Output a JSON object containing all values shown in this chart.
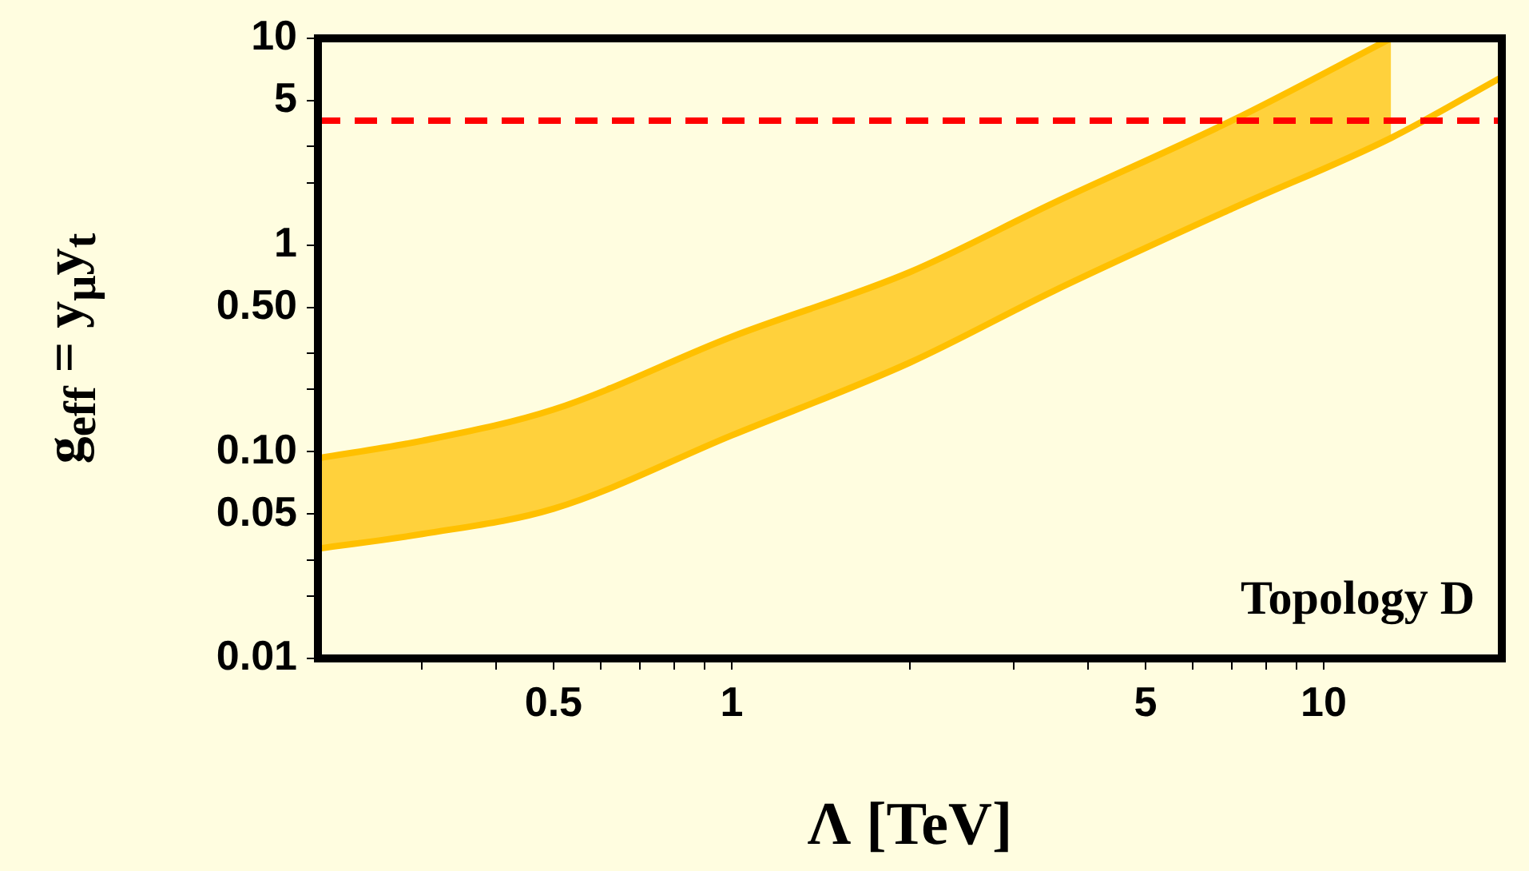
{
  "chart_data": {
    "type": "line",
    "xlabel": "Λ [TeV]",
    "ylabel": "g$_{eff}$ = y$_{μ}$y$_{t}$",
    "log": "xy",
    "grid": false,
    "legend": false,
    "marker": "none",
    "xlim": [
      0.2,
      20
    ],
    "ylim": [
      0.01,
      10
    ],
    "xticks": [
      {
        "value": 0.3,
        "label": null
      },
      {
        "value": 0.4,
        "label": null
      },
      0.5,
      {
        "value": 0.6,
        "label": null
      },
      {
        "value": 0.7,
        "label": null
      },
      {
        "value": 0.8,
        "label": null
      },
      {
        "value": 0.9,
        "label": null
      },
      1,
      {
        "value": 2,
        "label": null
      },
      {
        "value": 3,
        "label": null
      },
      {
        "value": 4,
        "label": null
      },
      5,
      {
        "value": 6,
        "label": null
      },
      {
        "value": 7,
        "label": null
      },
      {
        "value": 8,
        "label": null
      },
      {
        "value": 9,
        "label": null
      },
      10
    ],
    "yticks": [
      0.01,
      {
        "value": 0.02,
        "label": null
      },
      {
        "value": 0.03,
        "label": null
      },
      {
        "value": 0.05,
        "label": "0.05"
      },
      {
        "value": 0.1,
        "label": "0.10"
      },
      {
        "value": 0.2,
        "label": null
      },
      {
        "value": 0.3,
        "label": null
      },
      {
        "value": 0.5,
        "label": "0.50"
      },
      1,
      {
        "value": 2,
        "label": null
      },
      {
        "value": 3,
        "label": null
      },
      5,
      10
    ],
    "x": [
      0.2,
      0.3,
      0.5,
      1,
      2,
      3.5,
      7,
      13,
      20
    ],
    "series": [
      {
        "type": "line",
        "color": "#ffc000",
        "values": [
          0.034,
          0.04,
          0.053,
          0.12,
          0.27,
          0.6,
          1.5,
          3.3,
          6.5
        ]
      },
      {
        "type": "area",
        "color": "#ffc000",
        "values": [
          0.093,
          0.113,
          0.16,
          0.36,
          0.74,
          1.6,
          4,
          10,
          null
        ]
      }
    ],
    "ref_lines": [
      {
        "axis": "y",
        "value": 4,
        "color": "#ff0000",
        "line_style": "dashed"
      }
    ],
    "annotations": [
      "Topology D"
    ]
  }
}
